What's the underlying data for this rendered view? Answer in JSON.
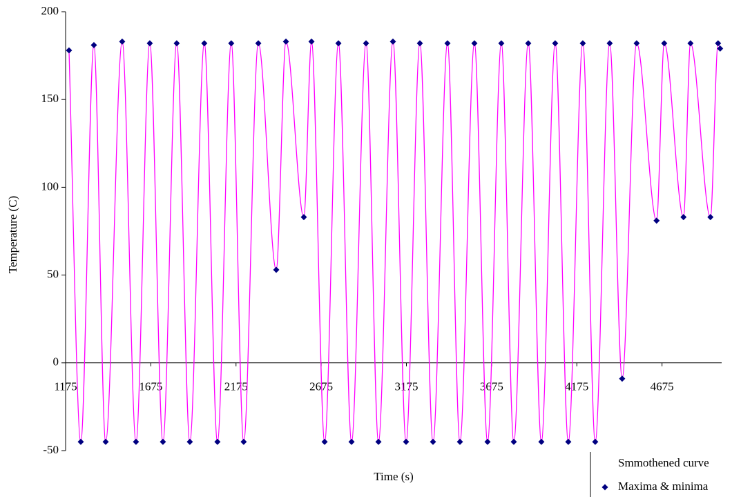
{
  "chart_data": {
    "type": "line",
    "xlabel": "Time (s)",
    "ylabel": "Temperature (C)",
    "xlim": [
      1175,
      5025
    ],
    "ylim": [
      -50,
      200
    ],
    "xticks": [
      1175,
      1675,
      2175,
      2675,
      3175,
      3675,
      4175,
      4675
    ],
    "yticks": [
      -50,
      0,
      50,
      100,
      150,
      200
    ],
    "series": [
      {
        "name": "Smmothened curve",
        "color": "#ff00ff",
        "kind": "line",
        "x": [
          1195,
          1264,
          1341,
          1410,
          1507,
          1588,
          1669,
          1746,
          1827,
          1904,
          1989,
          2066,
          2147,
          2220,
          2306,
          2411,
          2468,
          2573,
          2618,
          2695,
          2776,
          2853,
          2938,
          3011,
          3096,
          3173,
          3254,
          3331,
          3416,
          3489,
          3574,
          3651,
          3732,
          3805,
          3890,
          3967,
          4048,
          4125,
          4210,
          4283,
          4368,
          4441,
          4526,
          4643,
          4688,
          4801,
          4842,
          4959,
          5004,
          5016
        ],
        "values": [
          178,
          -45,
          181,
          -45,
          183,
          -45,
          182,
          -45,
          182,
          -45,
          182,
          -45,
          182,
          -45,
          182,
          53,
          183,
          83,
          183,
          -45,
          182,
          -45,
          182,
          -45,
          183,
          -45,
          182,
          -45,
          182,
          -45,
          182,
          -45,
          182,
          -45,
          182,
          -45,
          182,
          -45,
          182,
          -45,
          182,
          -9,
          182,
          81,
          182,
          83,
          182,
          83,
          182,
          179
        ]
      },
      {
        "name": "Maxima & minima",
        "color": "#000080",
        "kind": "scatter",
        "x": [
          1195,
          1264,
          1341,
          1410,
          1507,
          1588,
          1669,
          1746,
          1827,
          1904,
          1989,
          2066,
          2147,
          2220,
          2306,
          2411,
          2468,
          2573,
          2618,
          2695,
          2776,
          2853,
          2938,
          3011,
          3096,
          3173,
          3254,
          3331,
          3416,
          3489,
          3574,
          3651,
          3732,
          3805,
          3890,
          3967,
          4048,
          4125,
          4210,
          4283,
          4368,
          4441,
          4526,
          4643,
          4688,
          4801,
          4842,
          4959,
          5004,
          5016
        ],
        "values": [
          178,
          -45,
          181,
          -45,
          183,
          -45,
          182,
          -45,
          182,
          -45,
          182,
          -45,
          182,
          -45,
          182,
          53,
          183,
          83,
          183,
          -45,
          182,
          -45,
          182,
          -45,
          183,
          -45,
          182,
          -45,
          182,
          -45,
          182,
          -45,
          182,
          -45,
          182,
          -45,
          182,
          -45,
          182,
          -45,
          182,
          -9,
          182,
          81,
          182,
          83,
          182,
          83,
          182,
          179
        ]
      }
    ]
  }
}
